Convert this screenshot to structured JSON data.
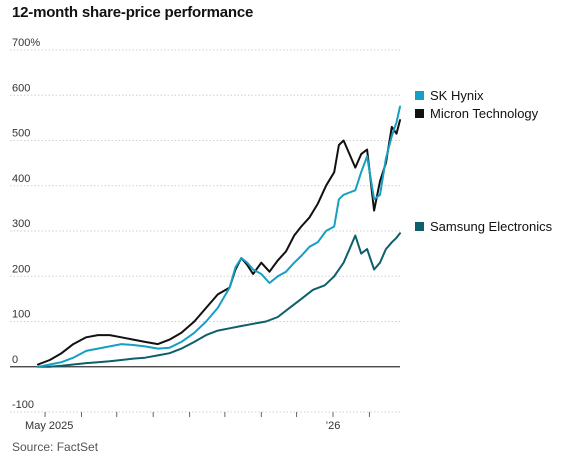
{
  "title": "12-month share-price performance",
  "source": "Source: FactSet",
  "chart_data": {
    "type": "line",
    "title": "12-month share-price performance",
    "xlabel": "",
    "ylabel": "",
    "ylim": [
      -100,
      700
    ],
    "yticks": [
      "700%",
      "600",
      "500",
      "400",
      "300",
      "200",
      "100",
      "0",
      "-100"
    ],
    "xticks": [
      "May 2025",
      "’26"
    ],
    "grid": true,
    "legend_position": "right, next to line ends",
    "x_range": [
      "2025-04-25",
      "2026-02-27"
    ],
    "series": [
      {
        "name": "SK Hynix",
        "color": "#159fc1",
        "points": [
          [
            "2025-04-25",
            0
          ],
          [
            "2025-05-05",
            5
          ],
          [
            "2025-05-15",
            10
          ],
          [
            "2025-05-25",
            20
          ],
          [
            "2025-06-05",
            35
          ],
          [
            "2025-06-15",
            40
          ],
          [
            "2025-06-25",
            45
          ],
          [
            "2025-07-05",
            50
          ],
          [
            "2025-07-15",
            48
          ],
          [
            "2025-07-25",
            45
          ],
          [
            "2025-08-05",
            40
          ],
          [
            "2025-08-15",
            42
          ],
          [
            "2025-08-25",
            55
          ],
          [
            "2025-09-05",
            75
          ],
          [
            "2025-09-15",
            100
          ],
          [
            "2025-09-25",
            130
          ],
          [
            "2025-10-05",
            175
          ],
          [
            "2025-10-10",
            220
          ],
          [
            "2025-10-15",
            240
          ],
          [
            "2025-10-20",
            230
          ],
          [
            "2025-10-25",
            215
          ],
          [
            "2025-11-01",
            205
          ],
          [
            "2025-11-08",
            185
          ],
          [
            "2025-11-15",
            200
          ],
          [
            "2025-11-22",
            210
          ],
          [
            "2025-11-29",
            230
          ],
          [
            "2025-12-05",
            245
          ],
          [
            "2025-12-12",
            265
          ],
          [
            "2025-12-19",
            275
          ],
          [
            "2025-12-26",
            300
          ],
          [
            "2026-01-02",
            310
          ],
          [
            "2026-01-06",
            370
          ],
          [
            "2026-01-10",
            380
          ],
          [
            "2026-01-15",
            385
          ],
          [
            "2026-01-20",
            390
          ],
          [
            "2026-01-25",
            430
          ],
          [
            "2026-01-30",
            465
          ],
          [
            "2026-02-05",
            370
          ],
          [
            "2026-02-10",
            380
          ],
          [
            "2026-02-15",
            460
          ],
          [
            "2026-02-20",
            510
          ],
          [
            "2026-02-24",
            540
          ],
          [
            "2026-02-27",
            575
          ]
        ]
      },
      {
        "name": "Micron Technology",
        "color": "#111111",
        "points": [
          [
            "2025-04-25",
            5
          ],
          [
            "2025-05-05",
            15
          ],
          [
            "2025-05-15",
            30
          ],
          [
            "2025-05-25",
            50
          ],
          [
            "2025-06-05",
            65
          ],
          [
            "2025-06-15",
            70
          ],
          [
            "2025-06-25",
            70
          ],
          [
            "2025-07-05",
            65
          ],
          [
            "2025-07-15",
            60
          ],
          [
            "2025-07-25",
            55
          ],
          [
            "2025-08-05",
            50
          ],
          [
            "2025-08-15",
            60
          ],
          [
            "2025-08-25",
            75
          ],
          [
            "2025-09-05",
            100
          ],
          [
            "2025-09-15",
            130
          ],
          [
            "2025-09-25",
            160
          ],
          [
            "2025-10-05",
            175
          ],
          [
            "2025-10-10",
            215
          ],
          [
            "2025-10-15",
            240
          ],
          [
            "2025-10-20",
            225
          ],
          [
            "2025-10-25",
            205
          ],
          [
            "2025-11-01",
            230
          ],
          [
            "2025-11-08",
            210
          ],
          [
            "2025-11-15",
            235
          ],
          [
            "2025-11-22",
            255
          ],
          [
            "2025-11-29",
            290
          ],
          [
            "2025-12-05",
            310
          ],
          [
            "2025-12-12",
            330
          ],
          [
            "2025-12-19",
            360
          ],
          [
            "2025-12-26",
            400
          ],
          [
            "2026-01-02",
            430
          ],
          [
            "2026-01-06",
            490
          ],
          [
            "2026-01-10",
            500
          ],
          [
            "2026-01-15",
            470
          ],
          [
            "2026-01-20",
            440
          ],
          [
            "2026-01-25",
            470
          ],
          [
            "2026-01-30",
            480
          ],
          [
            "2026-02-05",
            345
          ],
          [
            "2026-02-10",
            410
          ],
          [
            "2026-02-15",
            450
          ],
          [
            "2026-02-20",
            530
          ],
          [
            "2026-02-24",
            515
          ],
          [
            "2026-02-27",
            545
          ]
        ]
      },
      {
        "name": "Samsung Electronics",
        "color": "#0d5f6b",
        "points": [
          [
            "2025-04-25",
            0
          ],
          [
            "2025-05-05",
            0
          ],
          [
            "2025-05-15",
            2
          ],
          [
            "2025-05-25",
            5
          ],
          [
            "2025-06-05",
            8
          ],
          [
            "2025-06-15",
            10
          ],
          [
            "2025-06-25",
            12
          ],
          [
            "2025-07-05",
            15
          ],
          [
            "2025-07-15",
            18
          ],
          [
            "2025-07-25",
            20
          ],
          [
            "2025-08-05",
            25
          ],
          [
            "2025-08-15",
            30
          ],
          [
            "2025-08-25",
            40
          ],
          [
            "2025-09-05",
            55
          ],
          [
            "2025-09-15",
            70
          ],
          [
            "2025-09-25",
            80
          ],
          [
            "2025-10-05",
            85
          ],
          [
            "2025-10-15",
            90
          ],
          [
            "2025-10-25",
            95
          ],
          [
            "2025-11-05",
            100
          ],
          [
            "2025-11-15",
            110
          ],
          [
            "2025-11-25",
            130
          ],
          [
            "2025-12-05",
            150
          ],
          [
            "2025-12-15",
            170
          ],
          [
            "2025-12-25",
            180
          ],
          [
            "2026-01-02",
            200
          ],
          [
            "2026-01-10",
            230
          ],
          [
            "2026-01-15",
            260
          ],
          [
            "2026-01-20",
            290
          ],
          [
            "2026-01-25",
            250
          ],
          [
            "2026-01-30",
            260
          ],
          [
            "2026-02-05",
            215
          ],
          [
            "2026-02-10",
            230
          ],
          [
            "2026-02-15",
            260
          ],
          [
            "2026-02-20",
            275
          ],
          [
            "2026-02-24",
            285
          ],
          [
            "2026-02-27",
            295
          ]
        ]
      }
    ]
  }
}
